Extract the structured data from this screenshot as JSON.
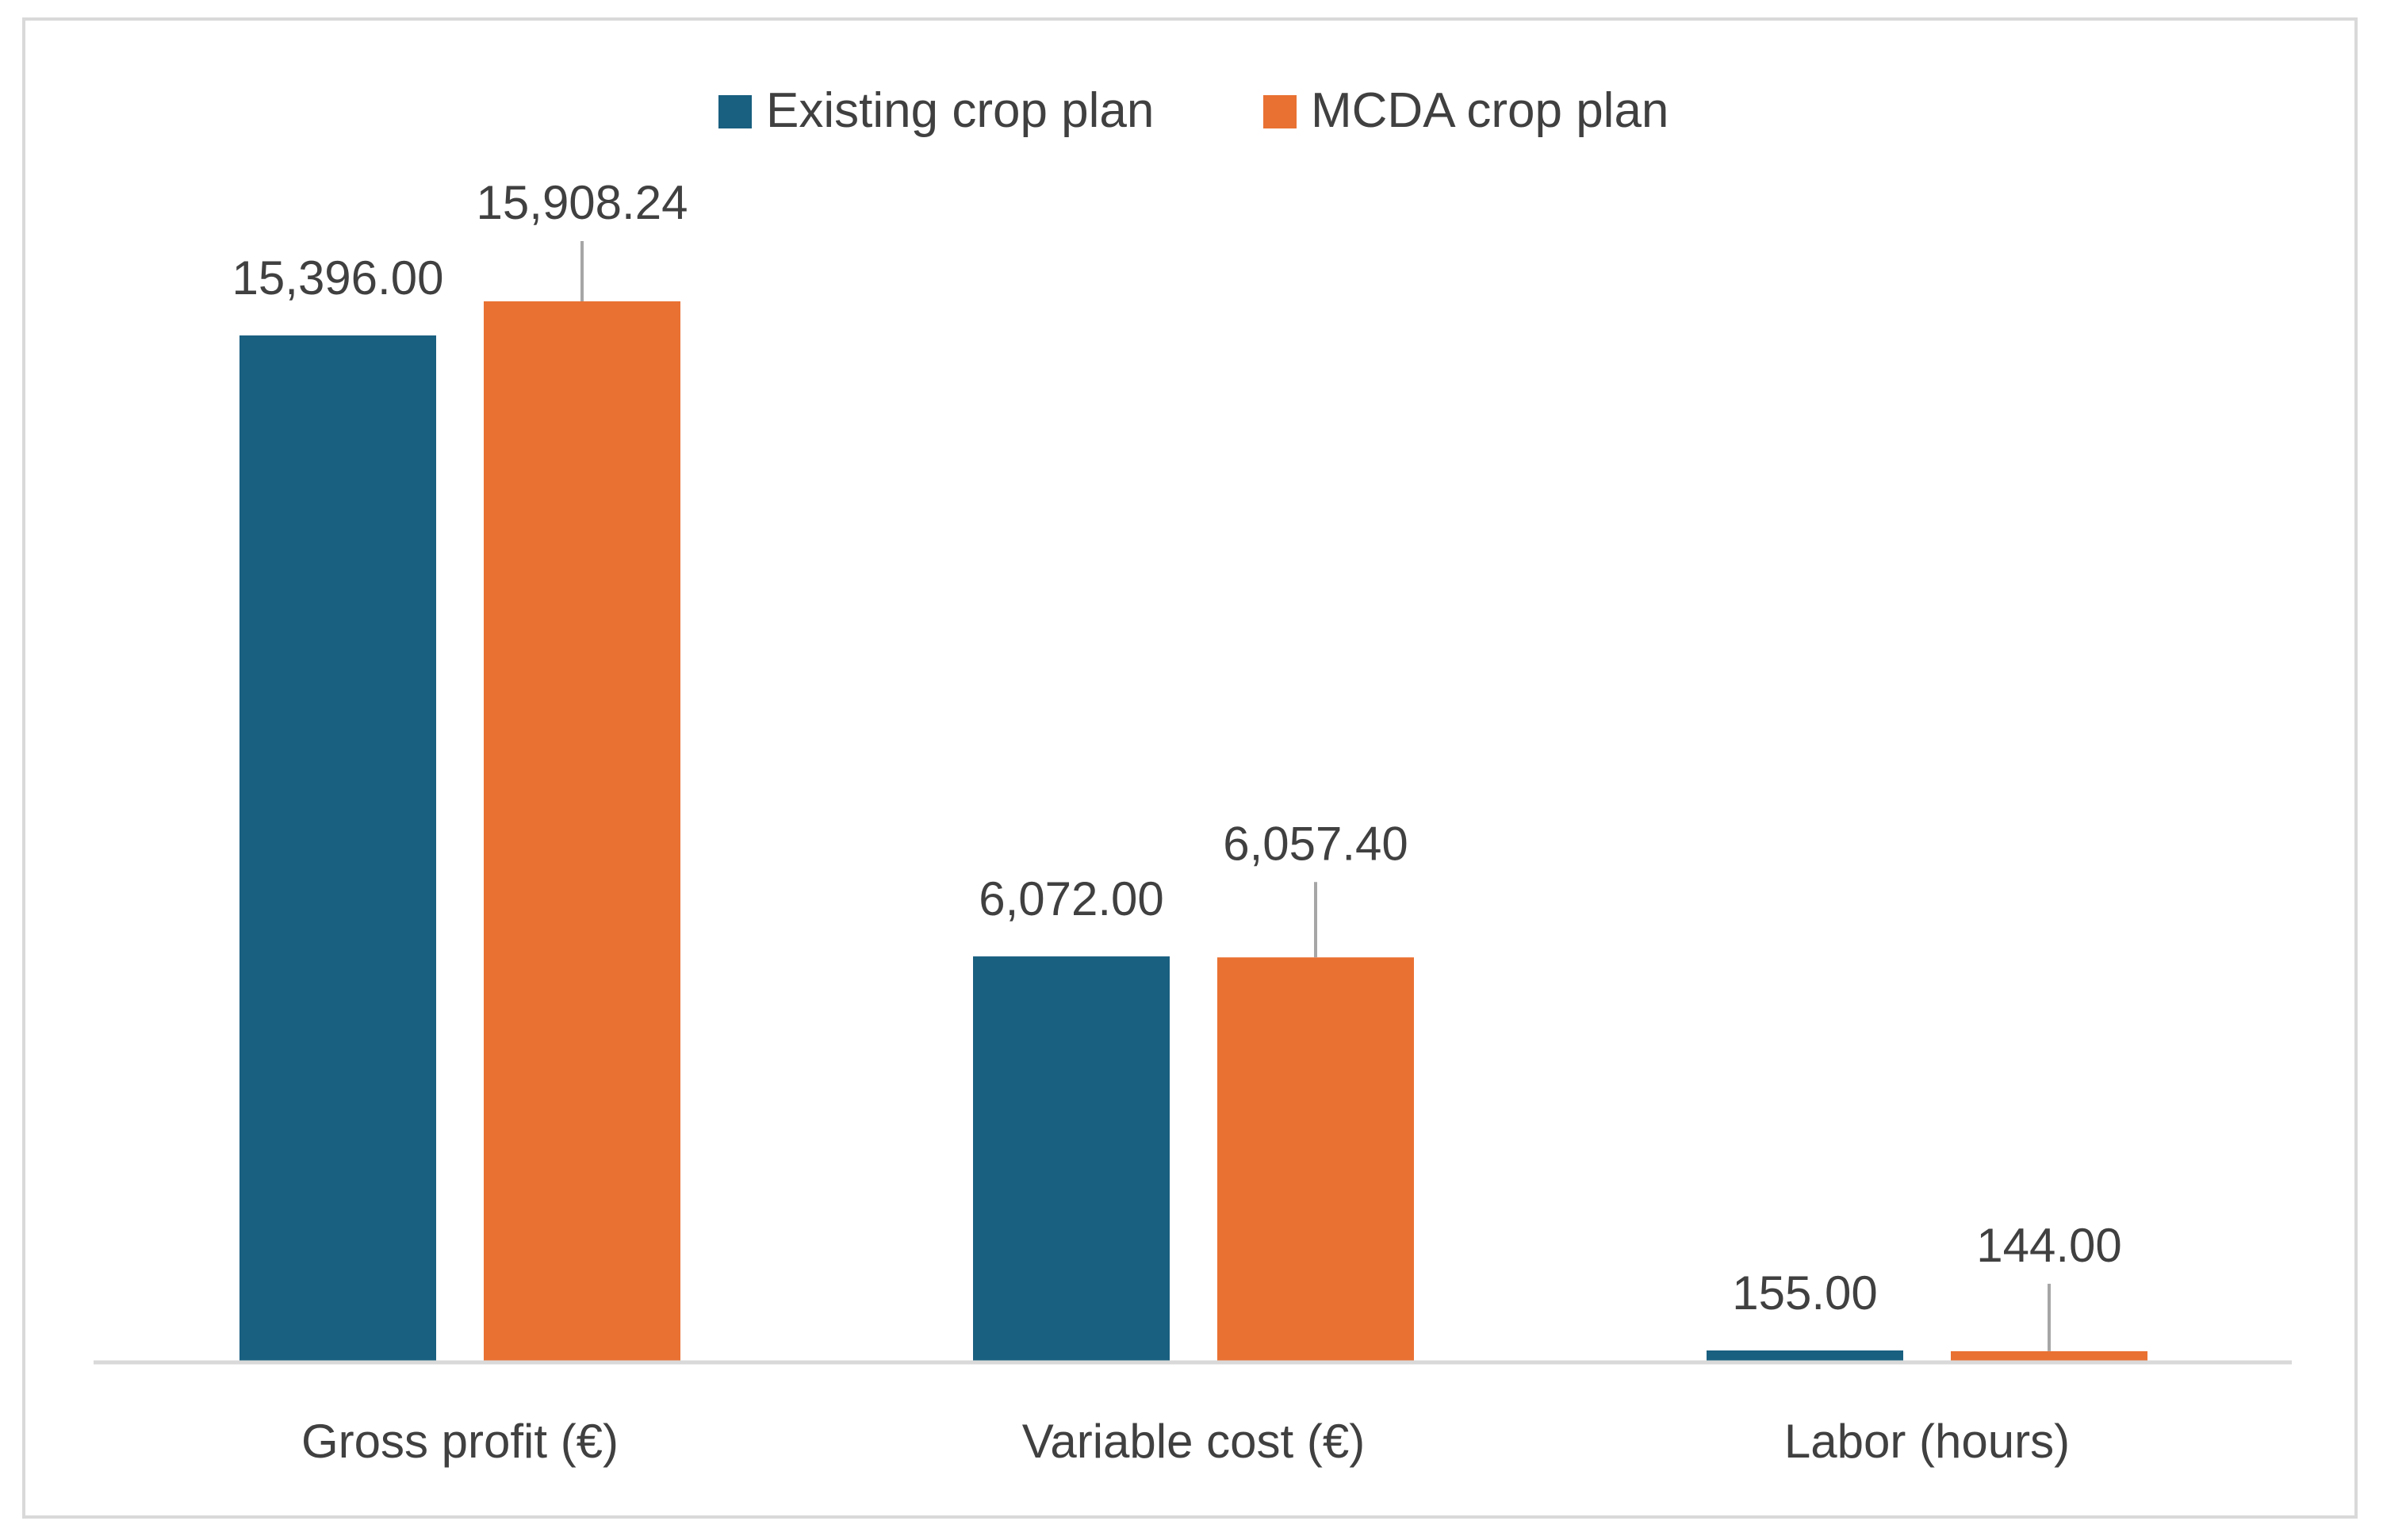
{
  "chart_data": {
    "type": "bar",
    "categories": [
      "Gross profit (€)",
      "Variable cost (€)",
      "Labor (hours)"
    ],
    "series": [
      {
        "name": "Existing crop plan",
        "values": [
          15396.0,
          6072.0,
          155.0
        ],
        "labels": [
          "15,396.00",
          "6,072.00",
          "155.00"
        ]
      },
      {
        "name": "MCDA crop plan",
        "values": [
          15908.24,
          6057.4,
          144.0
        ],
        "labels": [
          "15,908.24",
          "6,057.40",
          "144.00"
        ]
      }
    ],
    "colors": [
      "#195f80",
      "#e97132"
    ],
    "ylim": [
      0,
      17000
    ],
    "grid": false,
    "legend_position": "top"
  }
}
